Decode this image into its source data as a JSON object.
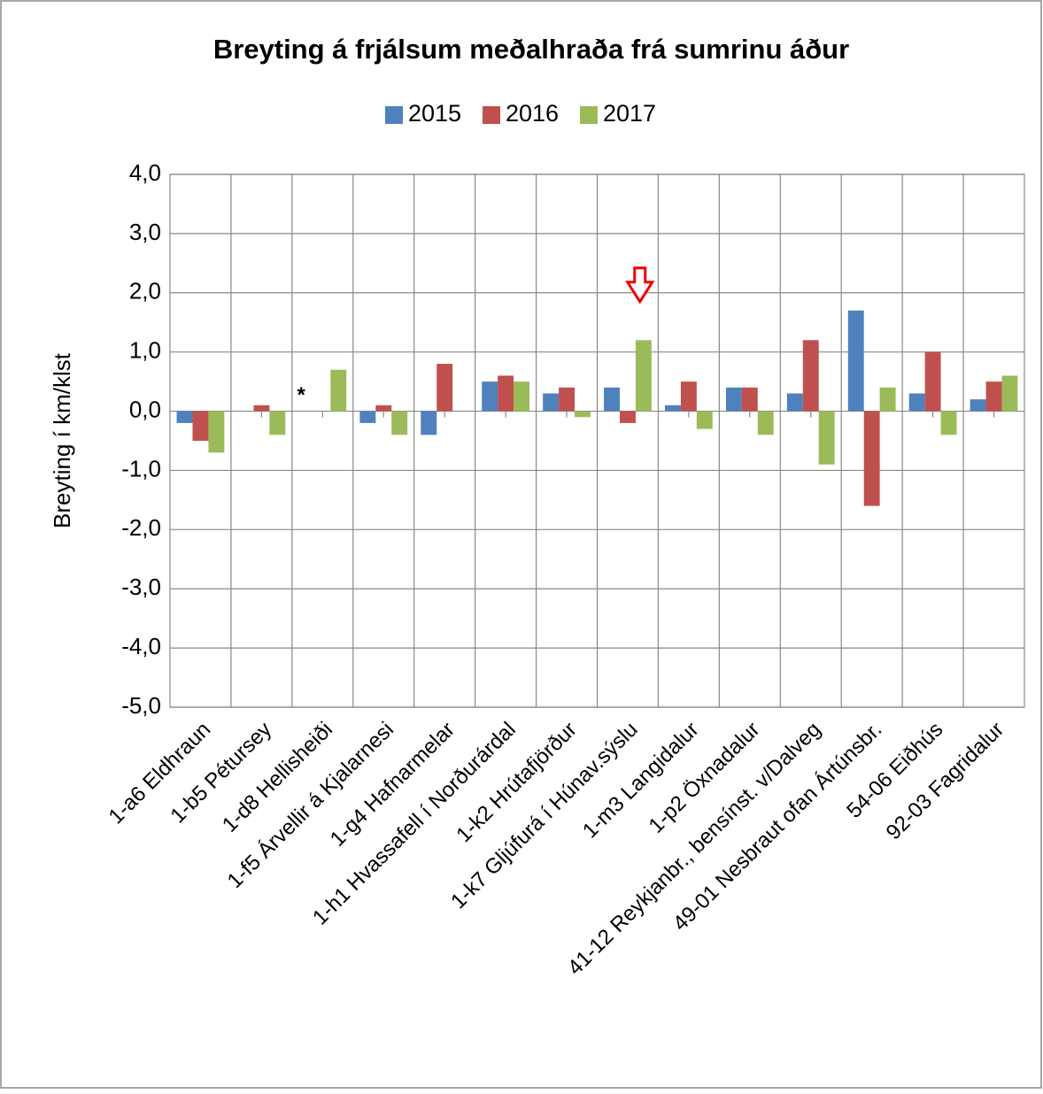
{
  "chart_data": {
    "type": "bar",
    "title": "Breyting á frjálsum meðalhraða frá sumrinu áður",
    "y_label": "Breyting í km/klst",
    "categories": [
      "1-a6 Eldhraun",
      "1-b5 Pétursey",
      "1-d8 Hellisheiði",
      "1-f5 Árvellir á Kjalarnesi",
      "1-g4 Hafnarmelar",
      "1-h1 Hvassafell í Norðurárdal",
      "1-k2 Hrútafjörður",
      "1-k7 Gljúfurá í Húnav.sýslu",
      "1-m3 Langidalur",
      "1-p2 Öxnadalur",
      "41-12 Reykjanbr., bensínst. v/Dalveg",
      "49-01 Nesbraut ofan Ártúnsbr.",
      "54-06 Eiðhús",
      "92-03 Fagridalur"
    ],
    "series": [
      {
        "name": "2015",
        "color": "#4f81bd",
        "values": [
          -0.2,
          null,
          null,
          -0.2,
          -0.4,
          0.5,
          0.3,
          0.4,
          0.1,
          0.4,
          0.3,
          1.7,
          0.3,
          0.2
        ]
      },
      {
        "name": "2016",
        "color": "#c0504d",
        "values": [
          -0.5,
          0.1,
          null,
          0.1,
          0.8,
          0.6,
          0.4,
          -0.2,
          0.5,
          0.4,
          1.2,
          -1.6,
          1.0,
          0.5
        ]
      },
      {
        "name": "2017",
        "color": "#9bbb59",
        "values": [
          -0.7,
          -0.4,
          0.7,
          -0.4,
          null,
          0.5,
          -0.1,
          1.2,
          -0.3,
          -0.4,
          -0.9,
          0.4,
          -0.4,
          0.6
        ]
      }
    ],
    "annotations": [
      "*"
    ],
    "ylim": [
      -5,
      4
    ],
    "yticks": [
      {
        "value": -5,
        "label": "-5,0"
      },
      {
        "value": -4,
        "label": "-4,0"
      },
      {
        "value": -3,
        "label": "-3,0"
      },
      {
        "value": -2,
        "label": "-2,0"
      },
      {
        "value": -1,
        "label": "-1,0"
      },
      {
        "value": 0,
        "label": "0,0"
      },
      {
        "value": 1,
        "label": "1,0"
      },
      {
        "value": 2,
        "label": "2,0"
      },
      {
        "value": 3,
        "label": "3,0"
      },
      {
        "value": 4,
        "label": "4,0"
      }
    ],
    "grid": true,
    "legend": "top"
  }
}
